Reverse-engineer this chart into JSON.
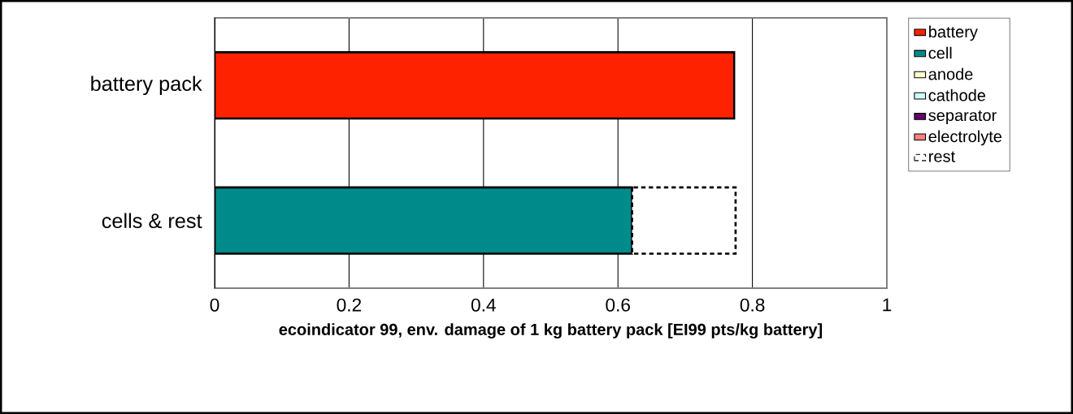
{
  "chart_data": {
    "type": "bar",
    "orientation": "horizontal",
    "stacked": true,
    "xlabel": "ecoindicator 99, env. damage of 1 kg battery pack  [EI99 pts/kg battery]",
    "categories": [
      "battery pack",
      "cells & rest"
    ],
    "series": [
      {
        "name": "battery",
        "color": "#ff2200",
        "values": [
          0.773,
          null
        ]
      },
      {
        "name": "cell",
        "color": "#008b8b",
        "values": [
          null,
          0.621
        ]
      },
      {
        "name": "anode",
        "color": "#ffffcc",
        "values": [
          null,
          null
        ]
      },
      {
        "name": "cathode",
        "color": "#ccffff",
        "values": [
          null,
          null
        ]
      },
      {
        "name": "separator",
        "color": "#660066",
        "values": [
          null,
          null
        ]
      },
      {
        "name": "electrolyte",
        "color": "#ff8080",
        "values": [
          null,
          null
        ]
      },
      {
        "name": "rest",
        "color": "#ffffff",
        "line_style": "dashed",
        "values": [
          null,
          0.154
        ]
      }
    ],
    "xlim": [
      0,
      1
    ],
    "xticks": [
      0,
      0.2,
      0.4,
      0.6,
      0.8,
      1
    ],
    "grid": "x",
    "legend": "right"
  }
}
